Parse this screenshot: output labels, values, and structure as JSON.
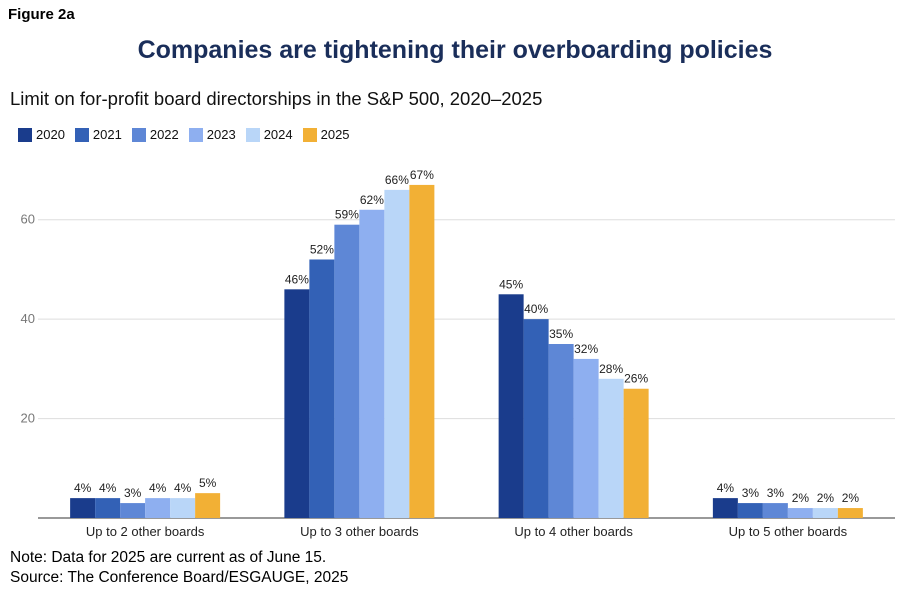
{
  "figure_label": "Figure 2a",
  "note": "Note: Data for 2025 are current as of June 15.",
  "source": "Source: The Conference Board/ESGAUGE, 2025",
  "chart_data": {
    "type": "bar",
    "title": "Companies are tightening their overboarding policies",
    "subtitle": "Limit on for-profit board directorships in the S&P 500, 2020–2025",
    "xlabel": "",
    "ylabel": "",
    "ylim": [
      0,
      70
    ],
    "yticks": [
      20,
      40,
      60
    ],
    "grid": true,
    "legend_position": "top-left",
    "categories": [
      "Up to 2 other boards",
      "Up to 3 other boards",
      "Up to 4 other boards",
      "Up to 5 other boards"
    ],
    "series": [
      {
        "name": "2020",
        "color": "#1a3c8c",
        "values": [
          4,
          46,
          45,
          4
        ],
        "labels": [
          "4%",
          "46%",
          "45%",
          "4%"
        ]
      },
      {
        "name": "2021",
        "color": "#3361b6",
        "values": [
          4,
          52,
          40,
          3
        ],
        "labels": [
          "4%",
          "52%",
          "40%",
          "3%"
        ]
      },
      {
        "name": "2022",
        "color": "#5e87d6",
        "values": [
          3,
          59,
          35,
          3
        ],
        "labels": [
          "3%",
          "59%",
          "35%",
          "3%"
        ]
      },
      {
        "name": "2023",
        "color": "#8eaff0",
        "values": [
          4,
          62,
          32,
          2
        ],
        "labels": [
          "4%",
          "62%",
          "32%",
          "2%"
        ]
      },
      {
        "name": "2024",
        "color": "#b9d6f8",
        "values": [
          4,
          66,
          28,
          2
        ],
        "labels": [
          "4%",
          "66%",
          "28%",
          "2%"
        ]
      },
      {
        "name": "2025",
        "color": "#f2b035",
        "values": [
          5,
          67,
          26,
          2
        ],
        "labels": [
          "5%",
          "67%",
          "26%",
          "2%"
        ]
      }
    ]
  }
}
